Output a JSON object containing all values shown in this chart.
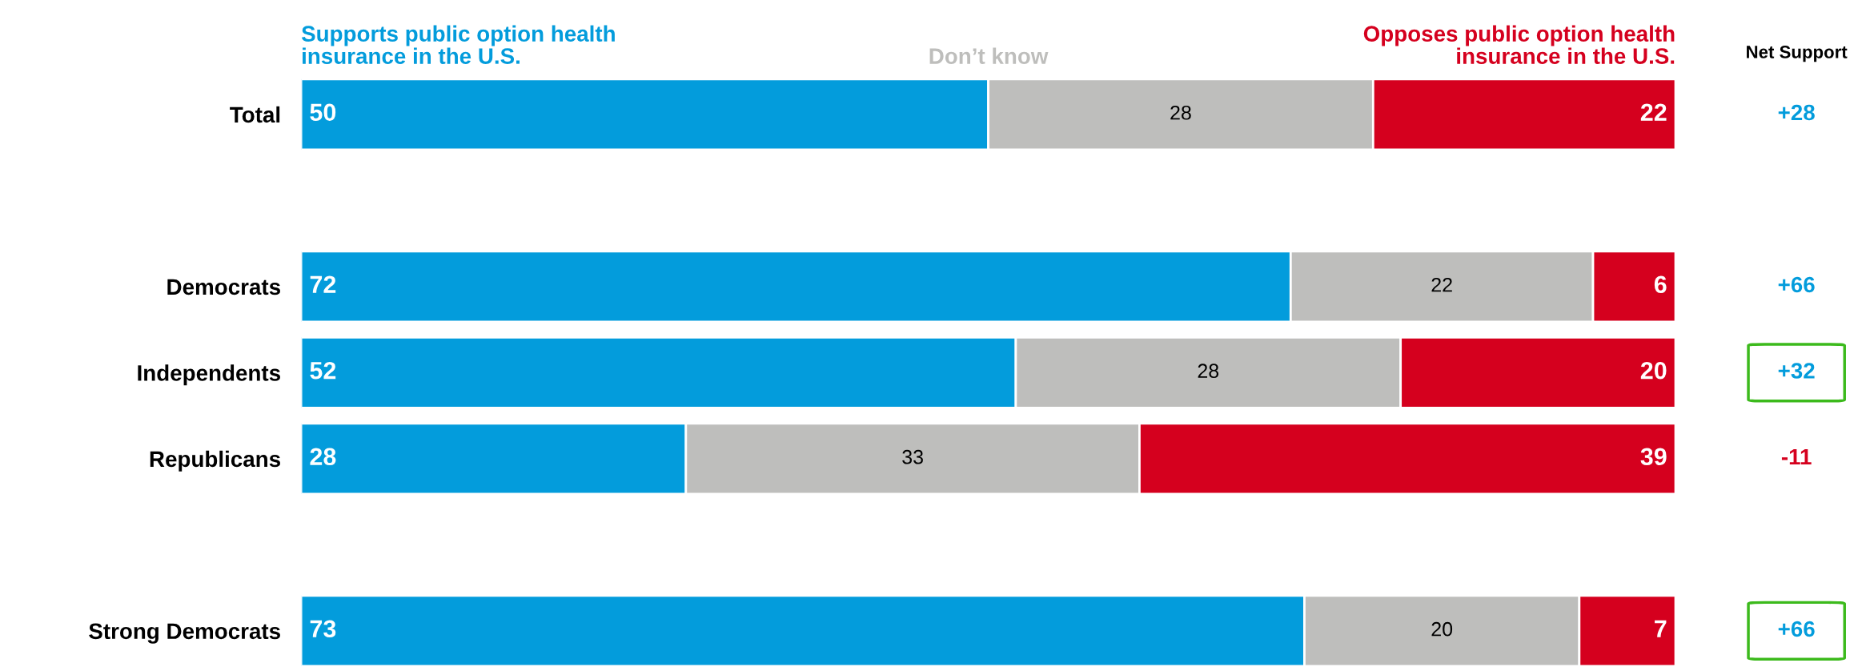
{
  "chart_data": {
    "type": "bar",
    "orientation": "horizontal",
    "stacked": true,
    "categories": [
      "Total",
      null,
      "Democrats",
      "Independents",
      "Republicans",
      null,
      "Strong Democrats"
    ],
    "series": [
      {
        "name": "Supports public option health\ninsurance in the U.S.",
        "color": "#039cdc",
        "values": [
          50,
          null,
          72,
          52,
          28,
          null,
          73
        ]
      },
      {
        "name": "Don’t know",
        "color": "#bebebc",
        "values": [
          28,
          null,
          22,
          28,
          33,
          null,
          20
        ]
      },
      {
        "name": "Opposes public option health\ninsurance in the U.S.",
        "color": "#d5001e",
        "values": [
          22,
          null,
          6,
          20,
          39,
          null,
          7
        ]
      }
    ],
    "xlim": [
      0,
      100
    ],
    "tick_labels": "y",
    "data_labels": true,
    "grid": false,
    "annotations": [
      "Net Support",
      "+28",
      "+66",
      "+32",
      "-11",
      "+66"
    ]
  }
}
